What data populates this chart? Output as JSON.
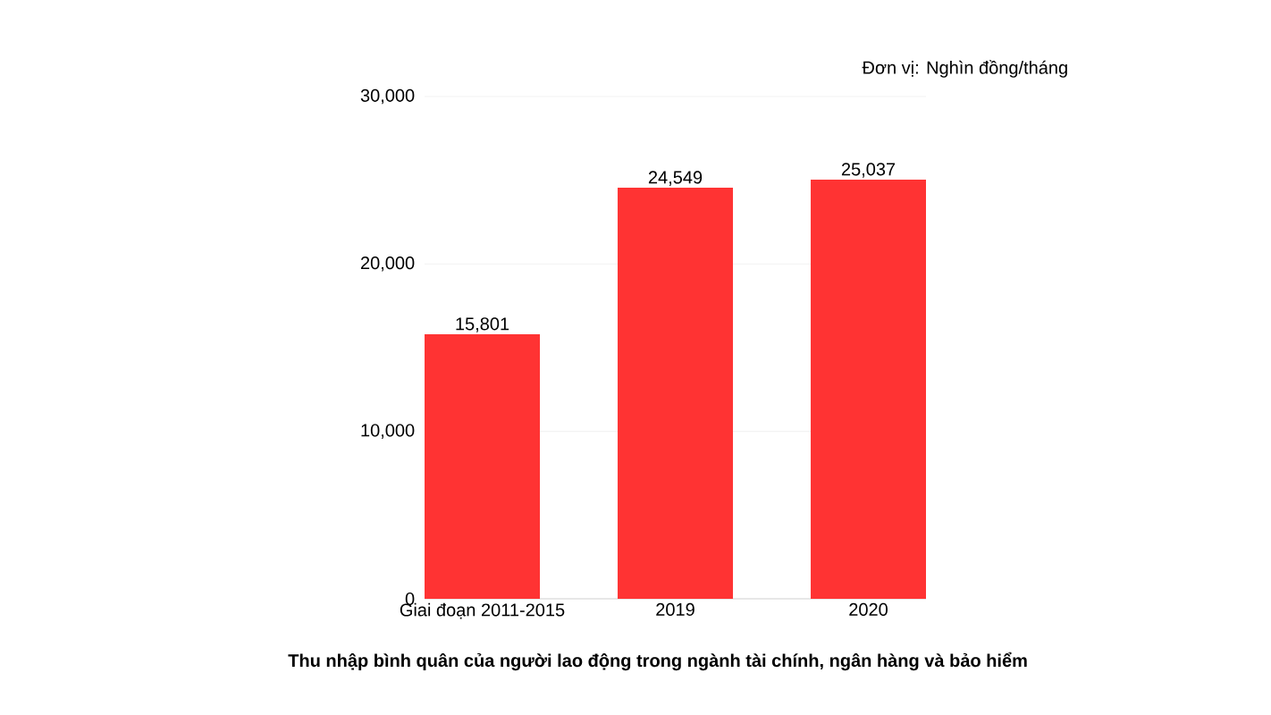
{
  "chart_data": {
    "type": "bar",
    "title": "Thu nhập bình quân của người lao động trong ngành tài chính, ngân hàng và bảo hiểm",
    "annotations": [
      "Đơn vị: Nghìn đồng/tháng"
    ],
    "categories": [
      "Giai đoạn 2011-2015",
      "2019",
      "2020"
    ],
    "values": [
      15801,
      24549,
      25037
    ],
    "value_labels": [
      "15,801",
      "24,549",
      "25,037"
    ],
    "color": "#ff3333",
    "ylim": [
      0,
      30000
    ],
    "yticks": [
      {
        "value": 0,
        "label": "0"
      },
      {
        "value": 10000,
        "label": "10,000"
      },
      {
        "value": 20000,
        "label": "20,000"
      },
      {
        "value": 30000,
        "label": "30,000"
      }
    ],
    "grid": "y"
  }
}
